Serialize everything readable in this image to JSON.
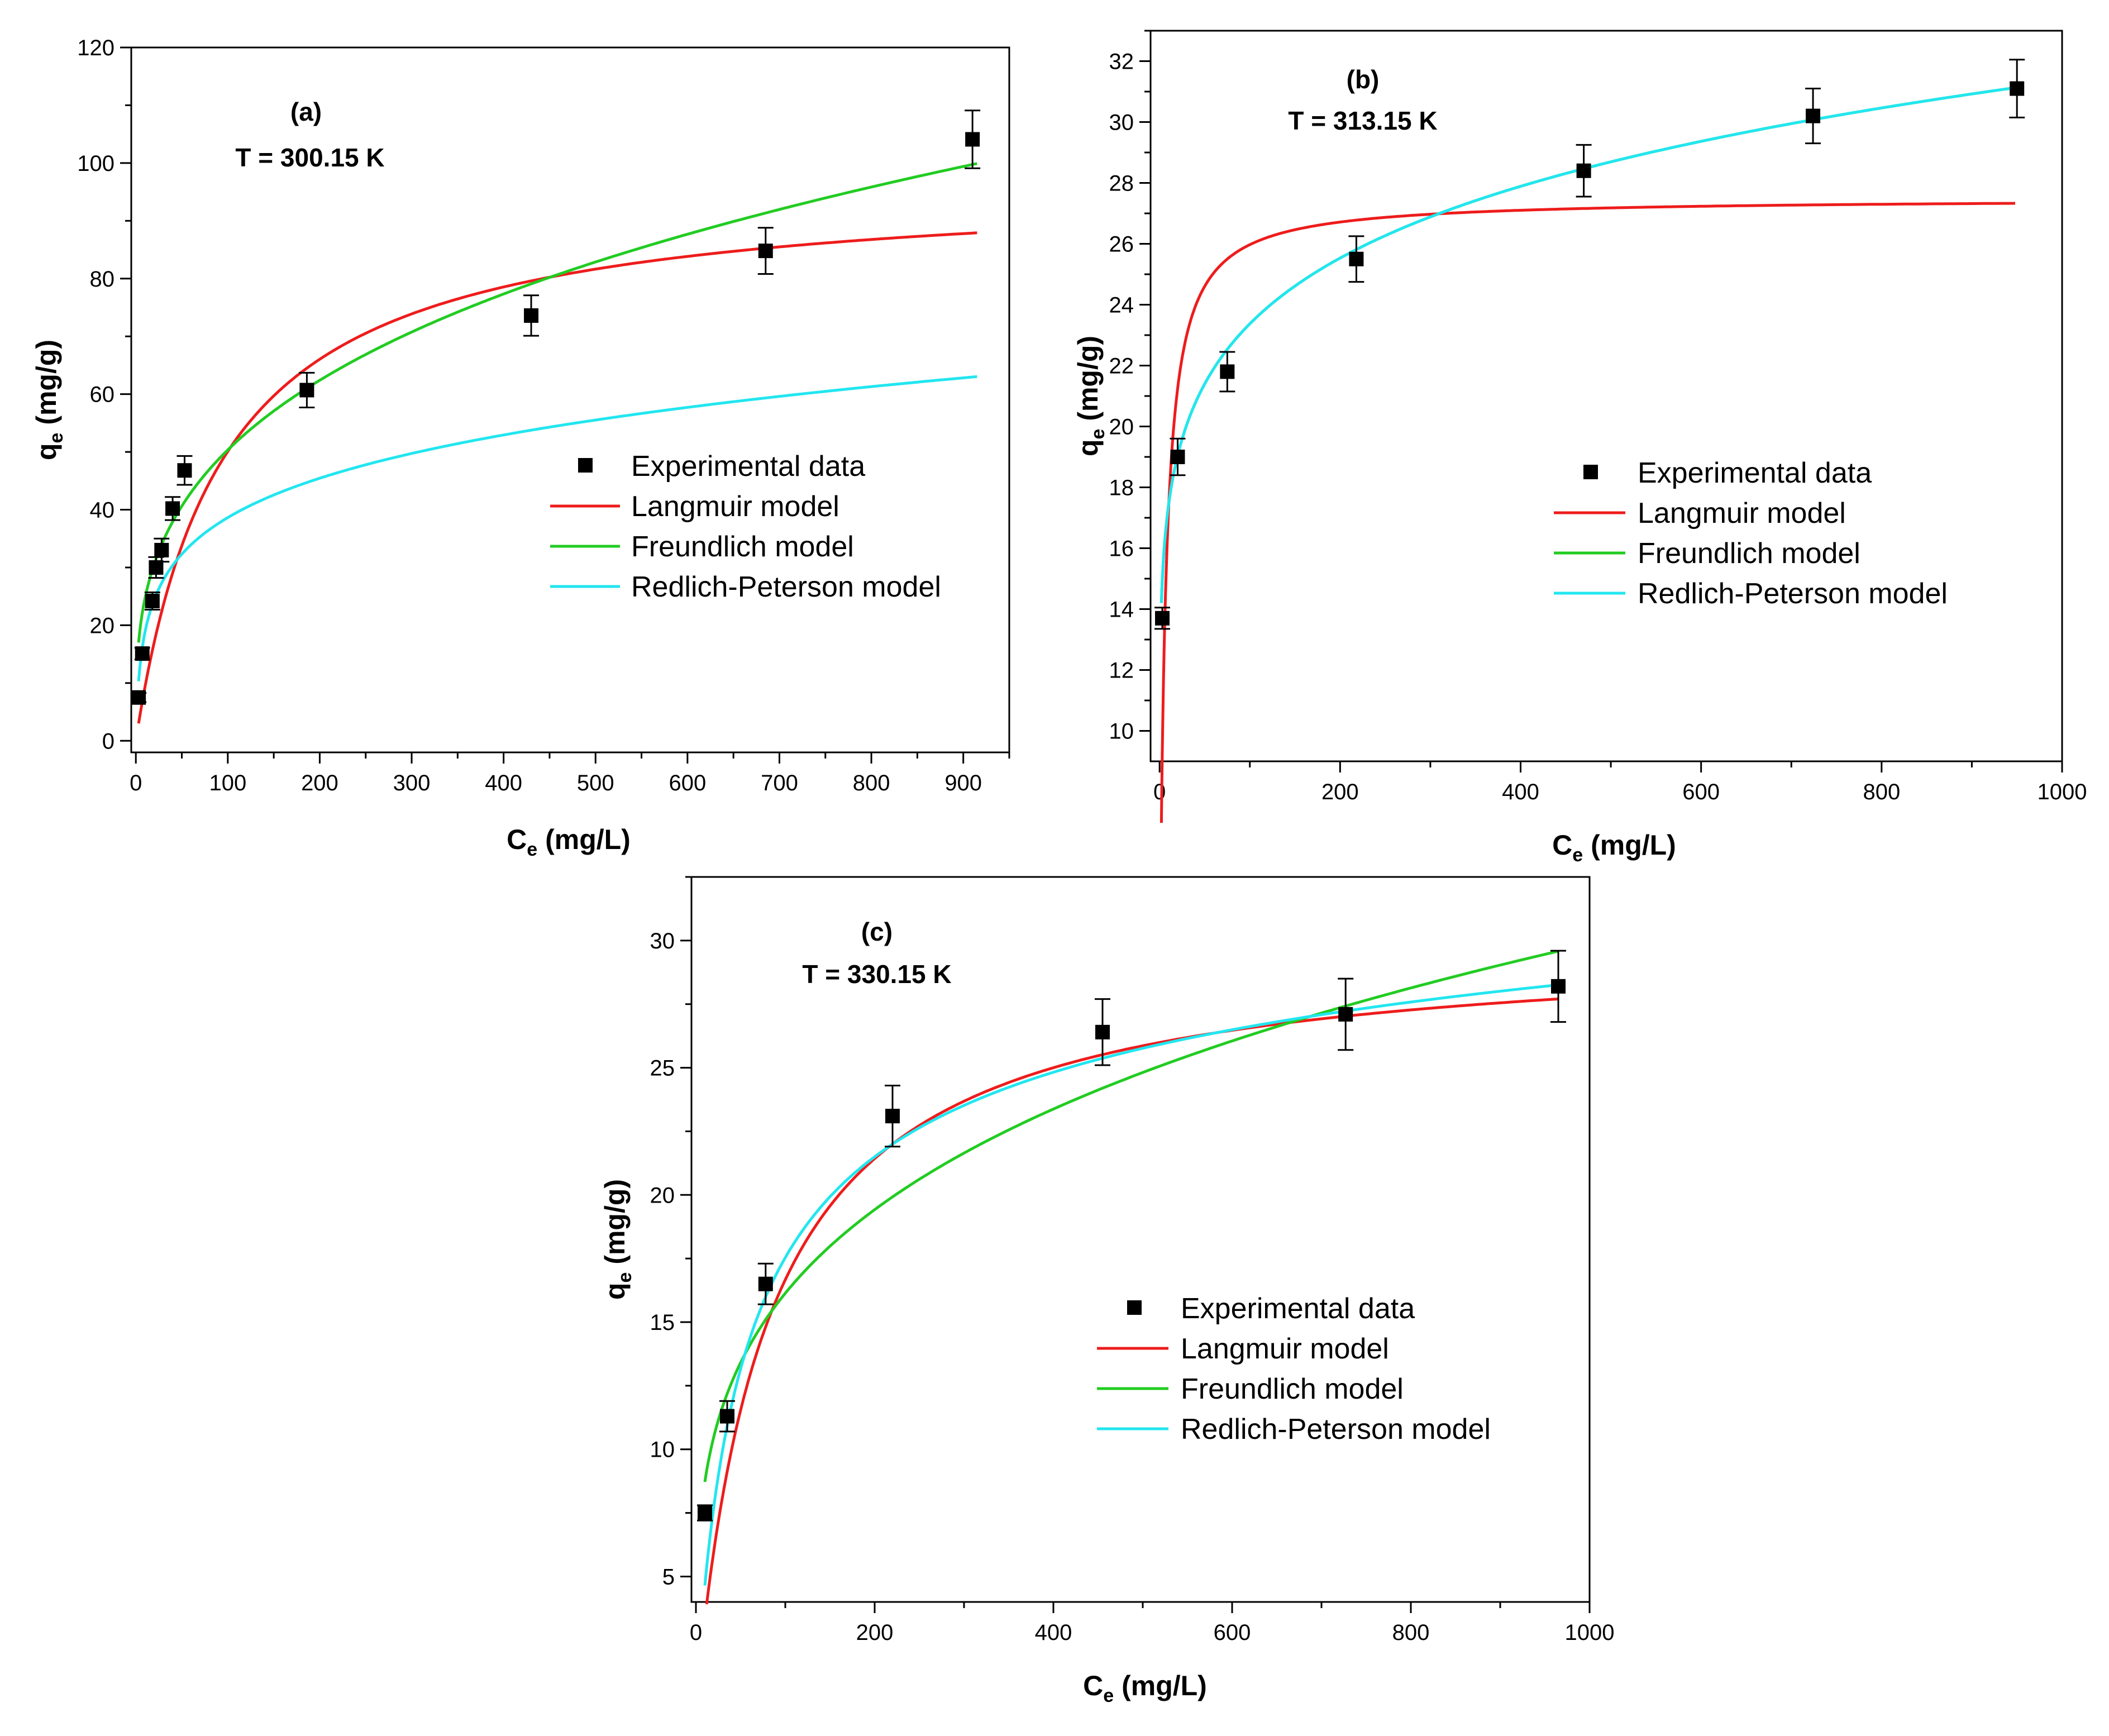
{
  "chart_data": [
    {
      "type": "scatter",
      "panel_label": "(a)",
      "subtitle": "T = 300.15 K",
      "xlabel": {
        "main": "C",
        "sub": "e",
        "unit": " (mg/L)"
      },
      "ylabel": {
        "main": "q",
        "sub": "e",
        "unit": " (mg/g)"
      },
      "xlim": [
        -5,
        950
      ],
      "ylim": [
        -2,
        120
      ],
      "xticks": [
        0,
        100,
        200,
        300,
        400,
        500,
        600,
        700,
        800,
        900
      ],
      "yticks": [
        0,
        20,
        40,
        60,
        80,
        100,
        120
      ],
      "legend_position": "center-right",
      "experimental": {
        "name": "Experimental data",
        "color": "#000000",
        "points": [
          {
            "x": 3,
            "y": 7.5,
            "err": 0.8
          },
          {
            "x": 7,
            "y": 15.1,
            "err": 1.0
          },
          {
            "x": 18,
            "y": 24.2,
            "err": 1.5
          },
          {
            "x": 22,
            "y": 30.0,
            "err": 1.8
          },
          {
            "x": 28,
            "y": 33.0,
            "err": 2.0
          },
          {
            "x": 40,
            "y": 40.2,
            "err": 2.0
          },
          {
            "x": 53,
            "y": 46.8,
            "err": 2.5
          },
          {
            "x": 186,
            "y": 60.7,
            "err": 3.0
          },
          {
            "x": 430,
            "y": 73.6,
            "err": 3.5
          },
          {
            "x": 685,
            "y": 84.8,
            "err": 4.0
          },
          {
            "x": 910,
            "y": 104.1,
            "err": 5.0
          }
        ]
      },
      "models": [
        {
          "name": "Langmuir model",
          "color": "#ee1c1c",
          "kind": "langmuir",
          "qm": 96.9,
          "KL": 0.0107,
          "xmin": 3,
          "xmax": 915
        },
        {
          "name": "Freundlich model",
          "color": "#22cc22",
          "kind": "freundlich",
          "KF": 12.1,
          "n": 3.23,
          "xmin": 3,
          "xmax": 915
        },
        {
          "name": "Redlich-Peterson model",
          "color": "#22e6f0",
          "kind": "rp",
          "K": 7.0,
          "a": 0.43,
          "beta": 0.8,
          "xmin": 3,
          "xmax": 915
        }
      ]
    },
    {
      "type": "scatter",
      "panel_label": "(b)",
      "subtitle": "T = 313.15 K",
      "xlabel": {
        "main": "C",
        "sub": "e",
        "unit": " (mg/L)"
      },
      "ylabel": {
        "main": "q",
        "sub": "e",
        "unit": " (mg/g)"
      },
      "xlim": [
        -10,
        1000
      ],
      "ylim": [
        9,
        33
      ],
      "xticks": [
        0,
        200,
        400,
        600,
        800,
        1000
      ],
      "yticks": [
        10,
        12,
        14,
        16,
        18,
        20,
        22,
        24,
        26,
        28,
        30,
        32
      ],
      "legend_position": "center-right",
      "experimental": {
        "name": "Experimental data",
        "color": "#000000",
        "points": [
          {
            "x": 3,
            "y": 13.7,
            "err": 0.35
          },
          {
            "x": 20,
            "y": 19.0,
            "err": 0.6
          },
          {
            "x": 75,
            "y": 21.8,
            "err": 0.65
          },
          {
            "x": 218,
            "y": 25.5,
            "err": 0.75
          },
          {
            "x": 470,
            "y": 28.4,
            "err": 0.85
          },
          {
            "x": 724,
            "y": 30.2,
            "err": 0.9
          },
          {
            "x": 950,
            "y": 31.1,
            "err": 0.95
          }
        ]
      },
      "models": [
        {
          "name": "Langmuir model",
          "color": "#ee1c1c",
          "kind": "langmuir",
          "qm": 27.5,
          "KL": 0.17,
          "xmin": 2,
          "xmax": 948
        },
        {
          "name": "Freundlich model",
          "color": "#22cc22",
          "kind": "freundlich",
          "KF": 13.0,
          "n": 7.85,
          "xmin": 2,
          "xmax": 948
        },
        {
          "name": "Redlich-Peterson model",
          "color": "#22e6f0",
          "kind": "freundlich",
          "KF": 13.0,
          "n": 7.85,
          "xmin": 2,
          "xmax": 948
        }
      ]
    },
    {
      "type": "scatter",
      "panel_label": "(c)",
      "subtitle": "T = 330.15 K",
      "xlabel": {
        "main": "C",
        "sub": "e",
        "unit": " (mg/L)"
      },
      "ylabel": {
        "main": "q",
        "sub": "e",
        "unit": " (mg/g)"
      },
      "xlim": [
        -5,
        1000
      ],
      "ylim": [
        4,
        32.5
      ],
      "xticks": [
        0,
        200,
        400,
        600,
        800,
        1000
      ],
      "yticks": [
        5,
        10,
        15,
        20,
        25,
        30
      ],
      "legend_position": "center-right",
      "experimental": {
        "name": "Experimental data",
        "color": "#000000",
        "points": [
          {
            "x": 10,
            "y": 7.5,
            "err": 0.3
          },
          {
            "x": 35,
            "y": 11.3,
            "err": 0.6
          },
          {
            "x": 78,
            "y": 16.5,
            "err": 0.8
          },
          {
            "x": 220,
            "y": 23.1,
            "err": 1.2
          },
          {
            "x": 455,
            "y": 26.4,
            "err": 1.3
          },
          {
            "x": 727,
            "y": 27.1,
            "err": 1.4
          },
          {
            "x": 965,
            "y": 28.2,
            "err": 1.4
          }
        ]
      },
      "models": [
        {
          "name": "Langmuir model",
          "color": "#ee1c1c",
          "kind": "langmuir",
          "qm": 30.0,
          "KL": 0.0125,
          "xmin": 12,
          "xmax": 965
        },
        {
          "name": "Freundlich model",
          "color": "#22cc22",
          "kind": "freundlich",
          "KF": 4.71,
          "n": 3.74,
          "xmin": 10,
          "xmax": 965
        },
        {
          "name": "Redlich-Peterson model",
          "color": "#22e6f0",
          "kind": "rp",
          "K": 0.6,
          "a": 0.035,
          "beta": 0.92,
          "xmin": 10,
          "xmax": 965
        }
      ]
    }
  ]
}
